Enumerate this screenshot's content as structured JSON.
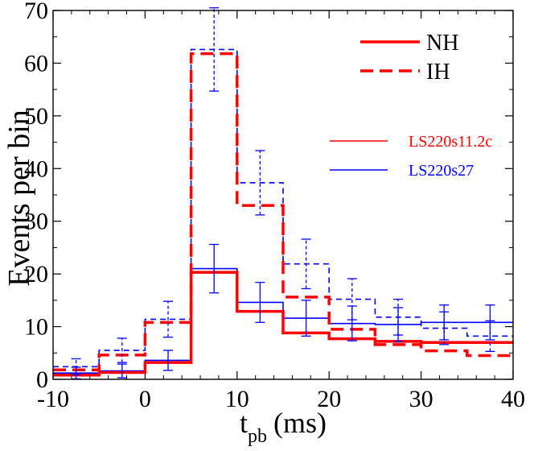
{
  "chart_data": {
    "type": "line",
    "subtype": "step-histogram",
    "title": "",
    "xlabel": "t",
    "xlabel_subscript": "pb",
    "xlabel_units": "(ms)",
    "ylabel": "Events per bin",
    "xlim": [
      -10,
      40
    ],
    "ylim": [
      0,
      70
    ],
    "xticks": [
      -10,
      0,
      10,
      20,
      30,
      40
    ],
    "yticks": [
      0,
      10,
      20,
      30,
      40,
      50,
      60,
      70
    ],
    "bin_edges": [
      -10,
      -5,
      0,
      5,
      10,
      15,
      20,
      25,
      30,
      35,
      40
    ],
    "legend_hierarchy": [
      {
        "label": "NH",
        "style": "solid"
      },
      {
        "label": "IH",
        "style": "dashed"
      }
    ],
    "legend_models": [
      {
        "label": "LS220s11.2c",
        "color": "#ff0000"
      },
      {
        "label": "LS220s27",
        "color": "#0000ff"
      }
    ],
    "series": [
      {
        "name": "LS220s11.2c NH",
        "model": "LS220s11.2c",
        "hierarchy": "NH",
        "color": "#ff0000",
        "style": "solid",
        "values": [
          0.8,
          1.3,
          3.2,
          20.3,
          12.9,
          8.8,
          7.7,
          7.2,
          7.0,
          7.0
        ]
      },
      {
        "name": "LS220s11.2c IH",
        "model": "LS220s11.2c",
        "hierarchy": "IH",
        "color": "#ff0000",
        "style": "dashed",
        "values": [
          1.8,
          4.6,
          10.8,
          61.8,
          33.0,
          15.6,
          9.5,
          6.6,
          5.4,
          4.5
        ]
      },
      {
        "name": "LS220s27 NH",
        "model": "LS220s27",
        "hierarchy": "NH",
        "color": "#0000ff",
        "style": "solid",
        "values": [
          1.2,
          1.6,
          3.6,
          21.0,
          14.6,
          11.6,
          10.6,
          10.4,
          10.8,
          10.8
        ]
      },
      {
        "name": "LS220s27 IH",
        "model": "LS220s27",
        "hierarchy": "IH",
        "color": "#0000ff",
        "style": "dashed",
        "values": [
          2.4,
          5.5,
          11.4,
          62.6,
          37.3,
          21.9,
          15.2,
          11.8,
          9.7,
          8.2
        ]
      }
    ],
    "error_bars": [
      {
        "series": "LS220s27 NH",
        "x": [
          -7.5,
          -2.5,
          2.5,
          7.5,
          12.5,
          17.5,
          22.5,
          27.5,
          32.5,
          37.5
        ],
        "y": [
          1.2,
          1.6,
          3.6,
          21.0,
          14.6,
          11.6,
          10.6,
          10.4,
          10.8,
          10.8
        ],
        "err": [
          1.1,
          1.3,
          1.9,
          4.6,
          3.8,
          3.4,
          3.3,
          3.2,
          3.3,
          3.3
        ]
      },
      {
        "series": "LS220s27 IH",
        "x": [
          -7.5,
          -2.5,
          2.5,
          7.5,
          12.5,
          17.5,
          22.5,
          27.5,
          32.5,
          37.5
        ],
        "y": [
          2.4,
          5.5,
          11.4,
          62.6,
          37.3,
          21.9,
          15.2,
          11.8,
          9.7,
          8.2
        ],
        "err": [
          1.5,
          2.3,
          3.4,
          7.9,
          6.1,
          4.7,
          3.9,
          3.4,
          3.1,
          2.9
        ]
      }
    ]
  }
}
